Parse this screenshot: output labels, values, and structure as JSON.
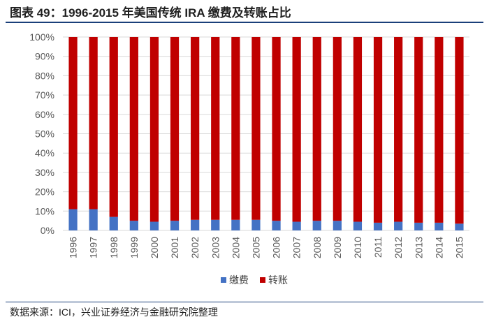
{
  "title": "图表 49：1996-2015 年美国传统 IRA 缴费及转账占比",
  "source": "数据来源：ICI，兴业证券经济与金融研究院整理",
  "colors": {
    "contribution": "#4472C4",
    "rollover": "#C00000",
    "grid": "#d9d9d9",
    "axis_text": "#595959"
  },
  "chart_data": {
    "type": "bar",
    "stacked": true,
    "percent": true,
    "categories": [
      "1996",
      "1997",
      "1998",
      "1999",
      "2000",
      "2001",
      "2002",
      "2003",
      "2004",
      "2005",
      "2006",
      "2007",
      "2008",
      "2009",
      "2010",
      "2011",
      "2012",
      "2013",
      "2014",
      "2015"
    ],
    "series": [
      {
        "name": "缴费",
        "values": [
          11,
          11,
          7,
          5,
          4.5,
          5,
          5.5,
          5.5,
          5.5,
          5.5,
          5,
          4.5,
          5,
          5,
          4.5,
          4,
          4.5,
          4,
          4,
          3.5
        ]
      },
      {
        "name": "转账",
        "values": [
          89,
          89,
          93,
          95,
          95.5,
          95,
          94.5,
          94.5,
          94.5,
          94.5,
          95,
          95.5,
          95,
          95,
          95.5,
          96,
          95.5,
          96,
          96,
          96.5
        ]
      }
    ],
    "yticks": [
      "0%",
      "10%",
      "20%",
      "30%",
      "40%",
      "50%",
      "60%",
      "70%",
      "80%",
      "90%",
      "100%"
    ],
    "ylim": [
      0,
      100
    ],
    "legend_position": "bottom",
    "grid": true
  }
}
